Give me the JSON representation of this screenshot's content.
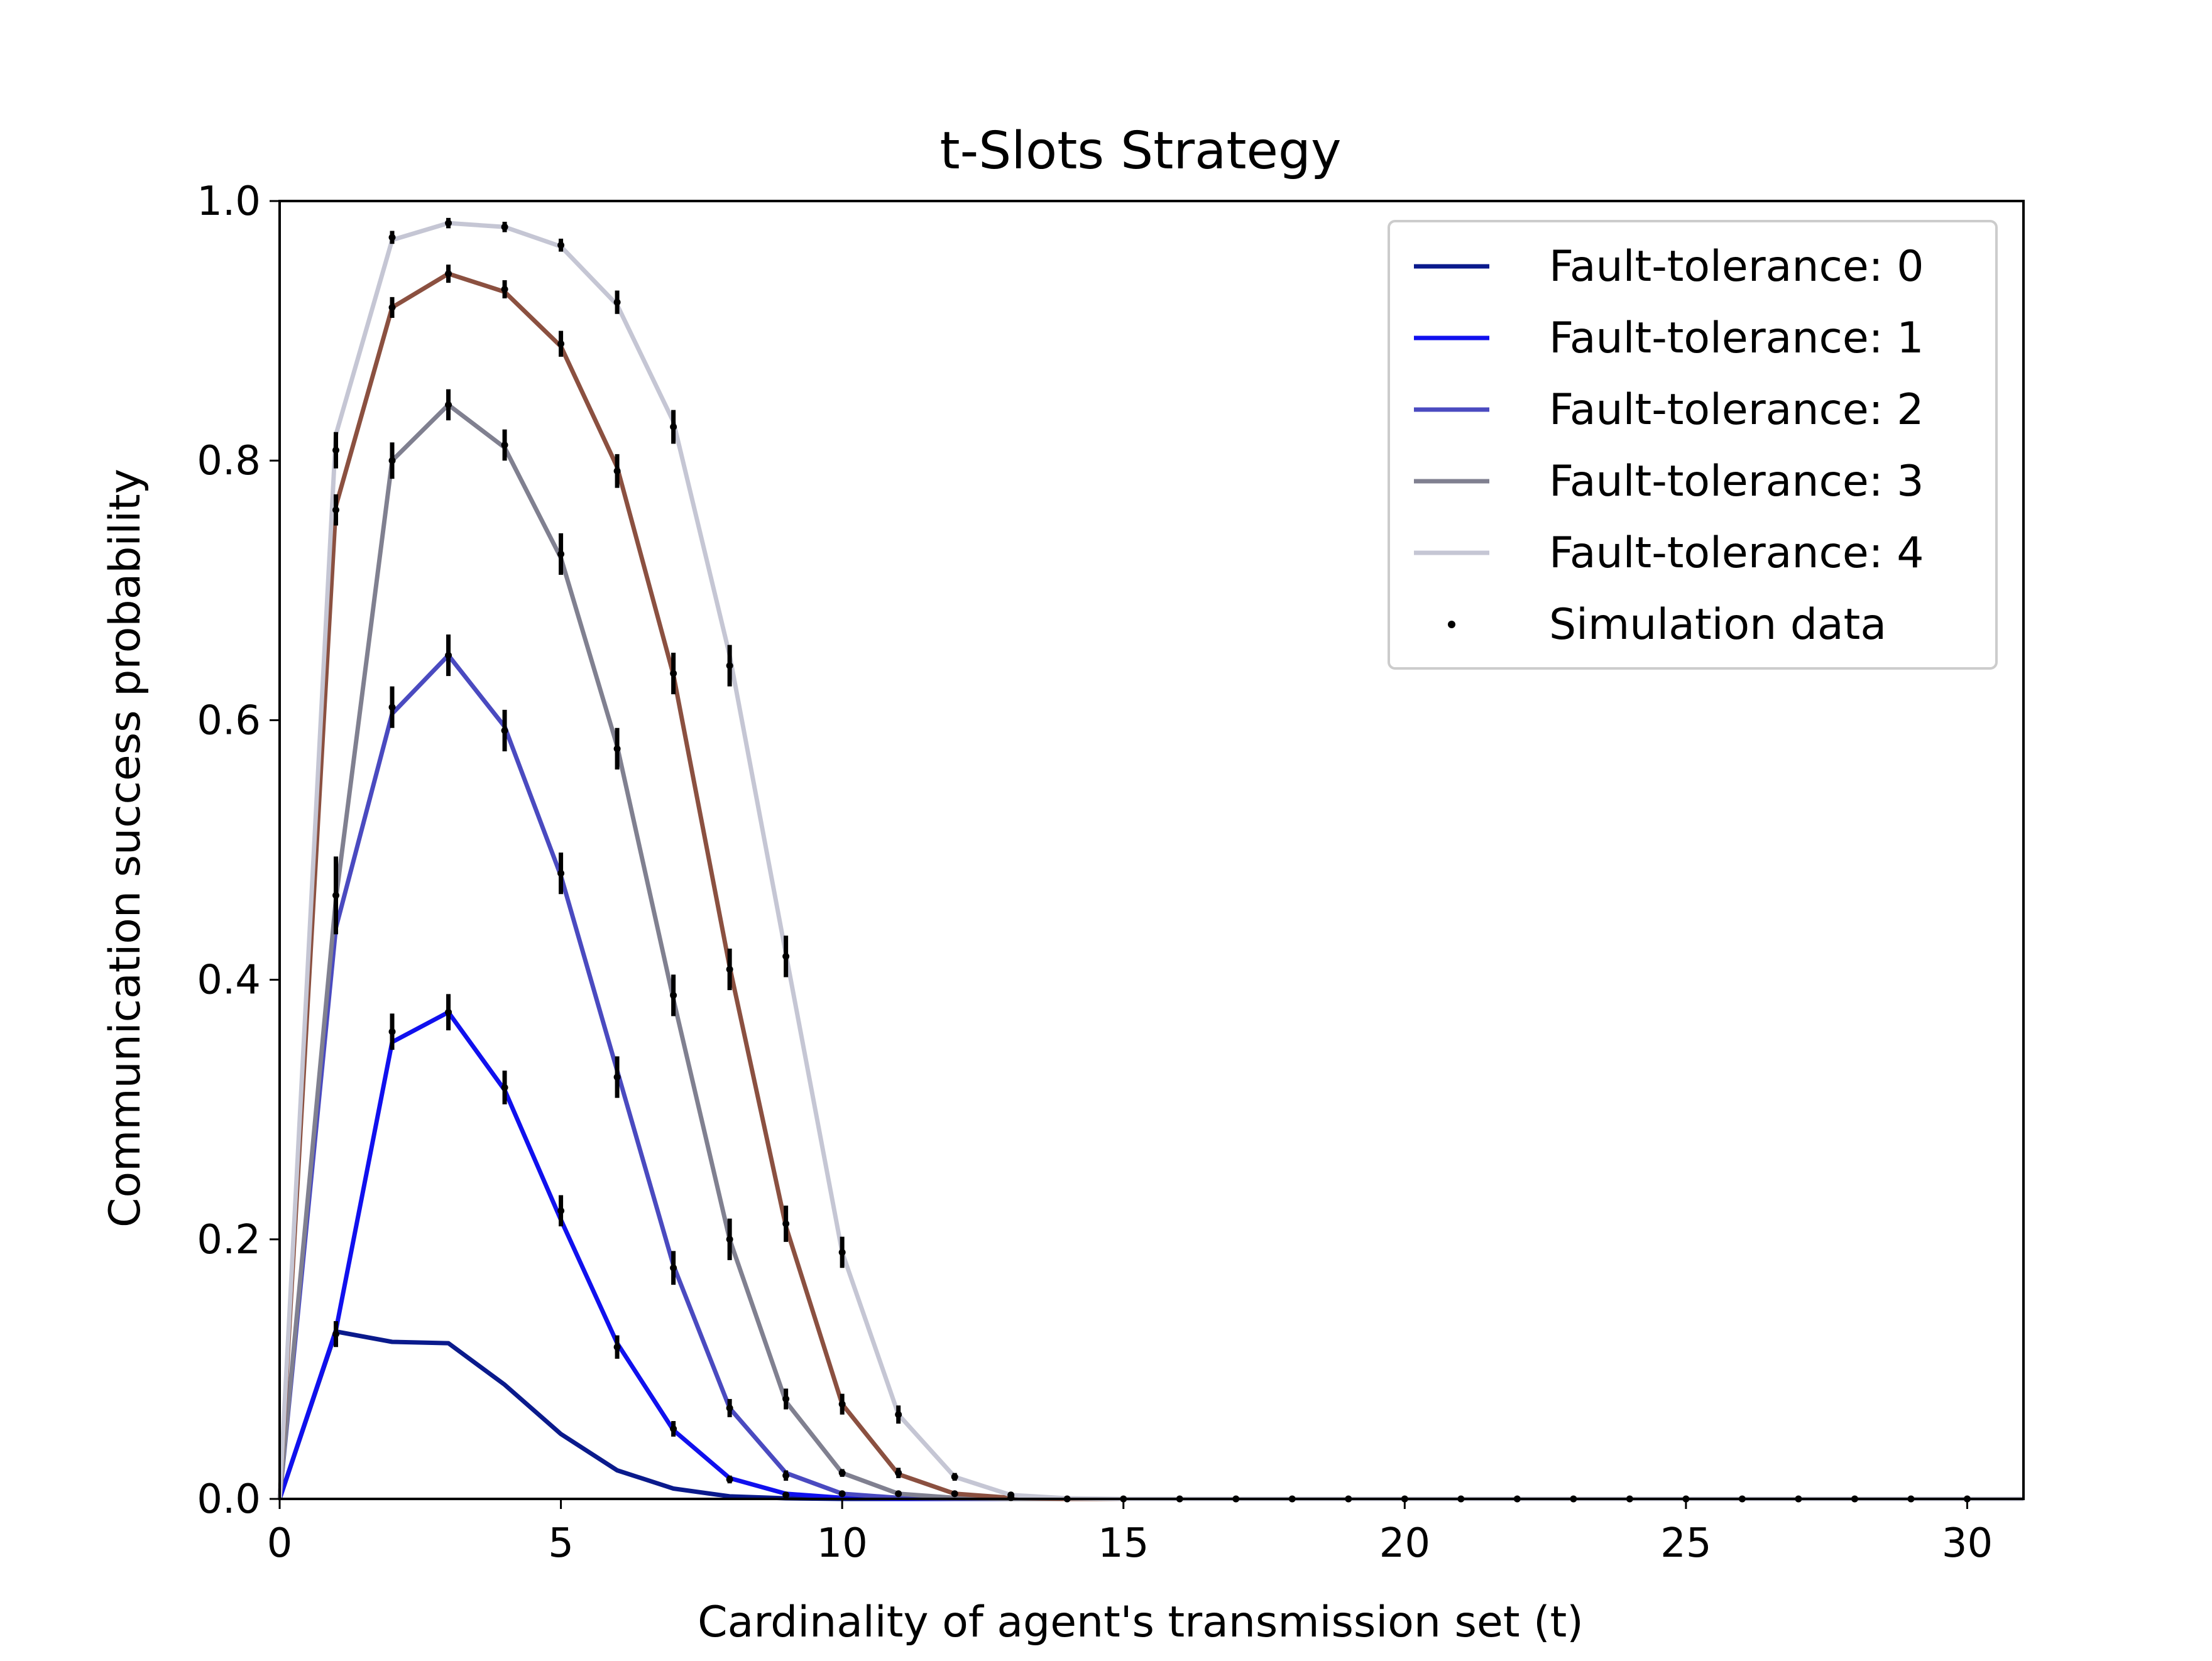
{
  "chart_data": {
    "type": "line",
    "title": "t-Slots Strategy",
    "xlabel": "Cardinality of agent's transmission set (t)",
    "ylabel": "Communication success probability",
    "xlim": [
      0,
      31
    ],
    "ylim": [
      0,
      1.0
    ],
    "xticks": [
      0,
      5,
      10,
      15,
      20,
      25,
      30
    ],
    "xtick_labels": [
      "0",
      "5",
      "10",
      "15",
      "20",
      "25",
      "30"
    ],
    "yticks": [
      0.0,
      0.2,
      0.4,
      0.6,
      0.8,
      1.0
    ],
    "ytick_labels": [
      "0.0",
      "0.2",
      "0.4",
      "0.6",
      "0.8",
      "1.0"
    ],
    "grid": false,
    "legend_position": "top-right",
    "x": [
      0,
      1,
      2,
      3,
      4,
      5,
      6,
      7,
      8,
      9,
      10,
      11,
      12,
      13,
      14,
      15,
      16,
      17,
      18,
      19,
      20,
      21,
      22,
      23,
      24,
      25,
      26,
      27,
      28,
      29,
      30,
      31
    ],
    "series": [
      {
        "name": "Fault-tolerance: 0",
        "color": "#0a1a8c",
        "values": [
          0,
          0.129,
          0.121,
          0.12,
          0.088,
          0.05,
          0.022,
          0.008,
          0.002,
          0.0005,
          0,
          0,
          0,
          0,
          0,
          0,
          0,
          0,
          0,
          0,
          0,
          0,
          0,
          0,
          0,
          0,
          0,
          0,
          0,
          0,
          0,
          0
        ],
        "sim_values": [
          null,
          0.127,
          null,
          null,
          null,
          null,
          null,
          null,
          null,
          null,
          null,
          null,
          null,
          null,
          null,
          null,
          null,
          null,
          null,
          null,
          null,
          null,
          null,
          null,
          null,
          null,
          null,
          null,
          null,
          null,
          null,
          null
        ],
        "sim_err": [
          null,
          0.01,
          null,
          null,
          null,
          null,
          null,
          null,
          null,
          null,
          null,
          null,
          null,
          null,
          null,
          null,
          null,
          null,
          null,
          null,
          null,
          null,
          null,
          null,
          null,
          null,
          null,
          null,
          null,
          null,
          null,
          null
        ]
      },
      {
        "name": "Fault-tolerance: 1",
        "color": "#1010ee",
        "values": [
          0,
          0.13,
          0.352,
          0.375,
          0.315,
          0.215,
          0.12,
          0.053,
          0.016,
          0.004,
          0.0008,
          0,
          0,
          0,
          0,
          0,
          0,
          0,
          0,
          0,
          0,
          0,
          0,
          0,
          0,
          0,
          0,
          0,
          0,
          0,
          0,
          0
        ],
        "sim_values": [
          null,
          null,
          0.36,
          0.375,
          0.317,
          0.222,
          0.117,
          0.054,
          0.015,
          0.003,
          null,
          null,
          null,
          null,
          null,
          null,
          null,
          null,
          null,
          null,
          null,
          null,
          null,
          null,
          null,
          null,
          null,
          null,
          null,
          null,
          null,
          null
        ],
        "sim_err": [
          null,
          null,
          0.014,
          0.014,
          0.013,
          0.012,
          0.009,
          0.006,
          0.003,
          0.002,
          null,
          null,
          null,
          null,
          null,
          null,
          null,
          null,
          null,
          null,
          null,
          null,
          null,
          null,
          null,
          null,
          null,
          null,
          null,
          null,
          null,
          null
        ]
      },
      {
        "name": "Fault-tolerance: 2",
        "color": "#4a4ac0",
        "values": [
          0,
          0.44,
          0.605,
          0.65,
          0.595,
          0.48,
          0.33,
          0.18,
          0.07,
          0.02,
          0.004,
          0.0008,
          0,
          0,
          0,
          0,
          0,
          0,
          0,
          0,
          0,
          0,
          0,
          0,
          0,
          0,
          0,
          0,
          0,
          0,
          0,
          0
        ],
        "sim_values": [
          null,
          0.465,
          0.61,
          0.65,
          0.592,
          0.482,
          0.325,
          0.178,
          0.07,
          0.018,
          0.004,
          null,
          null,
          null,
          null,
          null,
          null,
          null,
          null,
          null,
          null,
          null,
          null,
          null,
          null,
          null,
          null,
          null,
          null,
          null,
          null,
          null
        ],
        "sim_err": [
          null,
          0.03,
          0.016,
          0.016,
          0.016,
          0.016,
          0.016,
          0.013,
          0.007,
          0.004,
          0.002,
          null,
          null,
          null,
          null,
          null,
          null,
          null,
          null,
          null,
          null,
          null,
          null,
          null,
          null,
          null,
          null,
          null,
          null,
          null,
          null,
          null
        ]
      },
      {
        "name": "Fault-tolerance: 3",
        "color": "#808090",
        "values": [
          0,
          0.462,
          0.8,
          0.843,
          0.81,
          0.725,
          0.58,
          0.385,
          0.2,
          0.075,
          0.02,
          0.004,
          0.0008,
          0,
          0,
          0,
          0,
          0,
          0,
          0,
          0,
          0,
          0,
          0,
          0,
          0,
          0,
          0,
          0,
          0,
          0,
          0
        ],
        "sim_values": [
          null,
          null,
          0.8,
          0.843,
          0.812,
          0.728,
          0.578,
          0.388,
          0.2,
          0.077,
          0.02,
          0.004,
          null,
          null,
          null,
          null,
          null,
          null,
          null,
          null,
          null,
          null,
          null,
          null,
          null,
          null,
          null,
          null,
          null,
          null,
          null,
          null
        ],
        "sim_err": [
          null,
          null,
          0.014,
          0.012,
          0.012,
          0.016,
          0.016,
          0.016,
          0.016,
          0.008,
          0.003,
          0.002,
          null,
          null,
          null,
          null,
          null,
          null,
          null,
          null,
          null,
          null,
          null,
          null,
          null,
          null,
          null,
          null,
          null,
          null,
          null,
          null
        ]
      },
      {
        "name": "Fault-tolerance: 4",
        "color": "#c5c6d4",
        "values": [
          0,
          0.82,
          0.97,
          0.983,
          0.98,
          0.965,
          0.92,
          0.83,
          0.65,
          0.42,
          0.19,
          0.065,
          0.017,
          0.003,
          0.0005,
          0,
          0,
          0,
          0,
          0,
          0,
          0,
          0,
          0,
          0,
          0,
          0,
          0,
          0,
          0,
          0,
          0
        ],
        "sim_values": [
          null,
          0.808,
          0.972,
          0.983,
          0.98,
          0.966,
          0.922,
          0.826,
          0.642,
          0.418,
          0.19,
          0.065,
          0.017,
          0.003,
          null,
          null,
          null,
          null,
          null,
          null,
          null,
          null,
          null,
          null,
          null,
          null,
          null,
          null,
          null,
          null,
          null,
          null
        ],
        "sim_err": [
          null,
          0.014,
          0.005,
          0.004,
          0.004,
          0.005,
          0.009,
          0.013,
          0.016,
          0.016,
          0.012,
          0.007,
          0.003,
          0.002,
          null,
          null,
          null,
          null,
          null,
          null,
          null,
          null,
          null,
          null,
          null,
          null,
          null,
          null,
          null,
          null,
          null,
          null
        ]
      },
      {
        "name": "",
        "color": "#8b5040",
        "values": [
          0,
          0.765,
          0.918,
          0.944,
          0.93,
          0.888,
          0.795,
          0.635,
          0.41,
          0.21,
          0.073,
          0.019,
          0.004,
          0.0008,
          0,
          0,
          0,
          0,
          0,
          0,
          0,
          0,
          0,
          0,
          0,
          0,
          0,
          0,
          0,
          0,
          0,
          0
        ],
        "sim_values": [
          null,
          0.762,
          0.918,
          0.944,
          0.932,
          0.89,
          0.792,
          0.636,
          0.408,
          0.212,
          0.073,
          0.02,
          0.004,
          0.001,
          0.0,
          0.0,
          0.0,
          0.0,
          0.0,
          0.0,
          0.0,
          0.0,
          0.0,
          0.0,
          0.0,
          0.0,
          0.0,
          0.0,
          0.0,
          0.0,
          0.0,
          null
        ],
        "sim_err": [
          null,
          0.012,
          0.008,
          0.007,
          0.007,
          0.01,
          0.013,
          0.016,
          0.016,
          0.014,
          0.008,
          0.004,
          0.002,
          0.001,
          0,
          0,
          0,
          0,
          0,
          0,
          0,
          0,
          0,
          0,
          0,
          0,
          0,
          0,
          0,
          0,
          0,
          null
        ]
      }
    ],
    "legend": [
      {
        "label": "Fault-tolerance: 0",
        "color": "#0a1a8c",
        "kind": "line"
      },
      {
        "label": "Fault-tolerance: 1",
        "color": "#1010ee",
        "kind": "line"
      },
      {
        "label": "Fault-tolerance: 2",
        "color": "#4a4ac0",
        "kind": "line"
      },
      {
        "label": "Fault-tolerance: 3",
        "color": "#808090",
        "kind": "line"
      },
      {
        "label": "Fault-tolerance: 4",
        "color": "#c5c6d4",
        "kind": "line"
      },
      {
        "label": "Simulation data",
        "color": "#000000",
        "kind": "marker"
      }
    ]
  }
}
